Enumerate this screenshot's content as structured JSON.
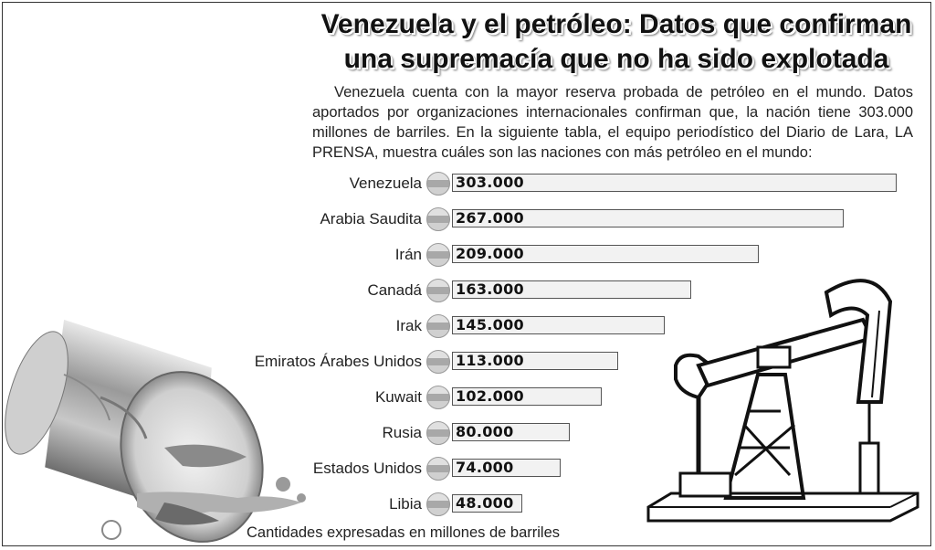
{
  "title_line1": "Venezuela y el petróleo: Datos que confirman",
  "title_line2": "una supremacía que no ha sido explotada",
  "intro": "Venezuela cuenta con la mayor reserva probada de petróleo en el mundo. Datos aportados por organizaciones internacionales confirman que, la nación tiene 303.000 millones de barriles. En la siguiente tabla, el equipo periodístico del Diario de Lara, LA PRENSA, muestra cuáles son las naciones con más petróleo en el mundo:",
  "footnote": "Cantidades expresadas en millones de barriles",
  "chart_data": {
    "type": "bar",
    "orientation": "horizontal",
    "categories": [
      "Venezuela",
      "Arabia Saudita",
      "Irán",
      "Canadá",
      "Irak",
      "Emiratos Árabes Unidos",
      "Kuwait",
      "Rusia",
      "Estados Unidos",
      "Libia"
    ],
    "value_labels": [
      "303.000",
      "267.000",
      "209.000",
      "163.000",
      "145.000",
      "113.000",
      "102.000",
      "80.000",
      "74.000",
      "48.000"
    ],
    "values": [
      303000,
      267000,
      209000,
      163000,
      145000,
      113000,
      102000,
      80000,
      74000,
      48000
    ],
    "unit": "millones de barriles",
    "bar_color": "#f2f2f2"
  }
}
